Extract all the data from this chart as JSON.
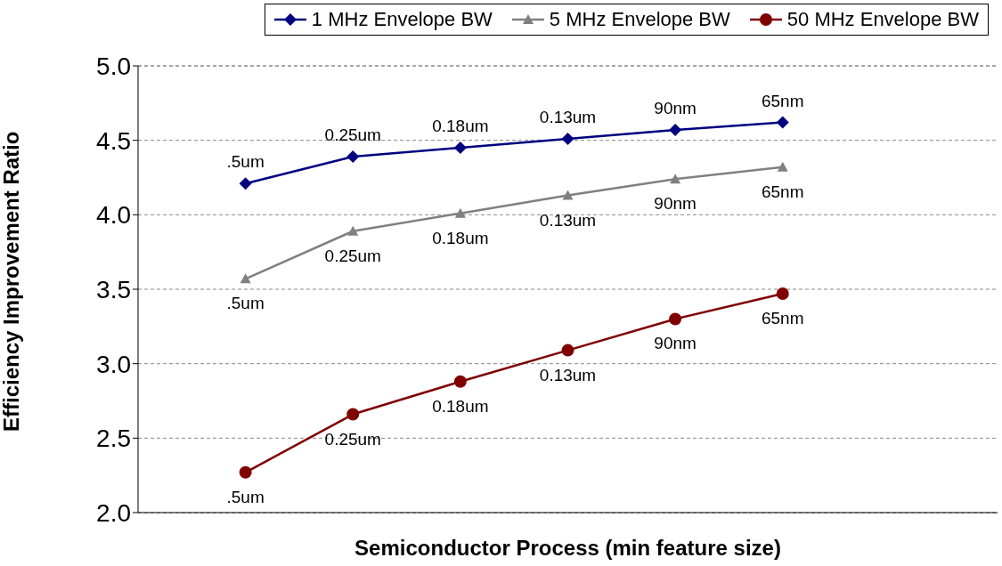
{
  "chart_data": {
    "type": "line",
    "xlabel": "Semiconductor Process (min feature size)",
    "ylabel": "Efficiency Improvement Ratio",
    "categories": [
      ".5um",
      "0.25um",
      "0.18um",
      "0.13um",
      "90nm",
      "65nm"
    ],
    "series": [
      {
        "name": "1 MHz Envelope BW",
        "color": "#000080",
        "marker": "diamond",
        "values": [
          4.21,
          4.39,
          4.45,
          4.51,
          4.57,
          4.62
        ]
      },
      {
        "name": "5 MHz Envelope BW",
        "color": "#808080",
        "marker": "triangle",
        "values": [
          3.57,
          3.89,
          4.01,
          4.13,
          4.24,
          4.32
        ]
      },
      {
        "name": "50 MHz Envelope BW",
        "color": "#800000",
        "marker": "circle",
        "values": [
          2.27,
          2.66,
          2.88,
          3.09,
          3.3,
          3.47
        ]
      }
    ],
    "ylim": [
      2.0,
      5.0
    ],
    "yticks": [
      {
        "value": 2,
        "label": "2.0"
      },
      {
        "value": 2.5,
        "label": "2.5"
      },
      {
        "value": 3,
        "label": "3.0"
      },
      {
        "value": 3.5,
        "label": "3.5"
      },
      {
        "value": 4,
        "label": "4.0"
      },
      {
        "value": 4.5,
        "label": "4.5"
      },
      {
        "value": 5,
        "label": "5.0"
      }
    ],
    "grid": "y",
    "legend": "top",
    "tick_labels": "y",
    "line_style": "solid"
  }
}
